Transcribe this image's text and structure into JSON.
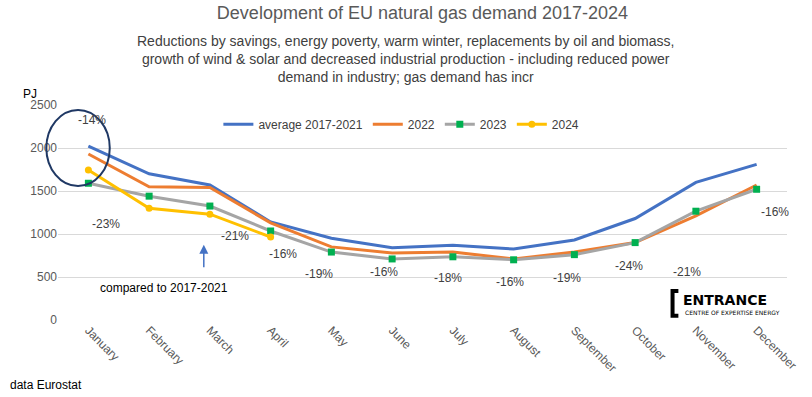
{
  "chart_data": {
    "type": "line",
    "title": "Development of EU natural gas demand 2017-2024",
    "subtitle": [
      "Reductions by savings, energy poverty, warm winter, replacements by oil and biomass,",
      "growth of wind & solar and decreased industrial production - including reduced power",
      "demand in industry; gas demand has incr"
    ],
    "y_label": "PJ",
    "categories": [
      "January",
      "February",
      "March",
      "April",
      "May",
      "June",
      "July",
      "August",
      "September",
      "October",
      "November",
      "December"
    ],
    "series": [
      {
        "name": "average 2017-2021",
        "color": "#4472c4",
        "marker": "none",
        "line_style": "solid",
        "values": [
          2023,
          1700,
          1570,
          1140,
          950,
          840,
          870,
          825,
          930,
          1180,
          1600,
          1810
        ]
      },
      {
        "name": "2022",
        "color": "#ed7d31",
        "marker": "none",
        "line_style": "solid",
        "values": [
          1930,
          1550,
          1540,
          1130,
          850,
          780,
          790,
          710,
          790,
          900,
          1210,
          1570
        ]
      },
      {
        "name": "2023",
        "color": "#a5a5a5",
        "marker_color": "#00b050",
        "marker": "square",
        "line_style": "solid",
        "values": [
          1590,
          1440,
          1325,
          1035,
          790,
          710,
          735,
          700,
          760,
          900,
          1265,
          1520
        ]
      },
      {
        "name": "2024",
        "color": "#ffc000",
        "marker": "circle",
        "line_style": "solid",
        "values": [
          1745,
          1300,
          1230,
          965,
          null,
          null,
          null,
          null,
          null,
          null,
          null,
          null
        ]
      }
    ],
    "ylim": [
      0,
      2500
    ],
    "yticks": [
      0,
      500,
      1000,
      1500,
      2000,
      2500
    ],
    "grid": true,
    "legend": "top",
    "annotations": [
      {
        "text": "-14%",
        "category": "January"
      },
      {
        "text": "-23%",
        "category": "February"
      },
      {
        "text": "-21%",
        "category": "March"
      },
      {
        "text": "-16%",
        "category": "April"
      },
      {
        "text": "-19%",
        "category": "May"
      },
      {
        "text": "-16%",
        "category": "June"
      },
      {
        "text": "-18%",
        "category": "July"
      },
      {
        "text": "-16%",
        "category": "August"
      },
      {
        "text": "-19%",
        "category": "September"
      },
      {
        "text": "-24%",
        "category": "October"
      },
      {
        "text": "-21%",
        "category": "November"
      },
      {
        "text": "-16%",
        "category": "December"
      }
    ],
    "note": "compared to 2017-2021",
    "source": "data Eurostat",
    "logo": {
      "name": "ENTRANCE",
      "tagline": "CENTRE OF EXPERTISE ENERGY"
    }
  }
}
